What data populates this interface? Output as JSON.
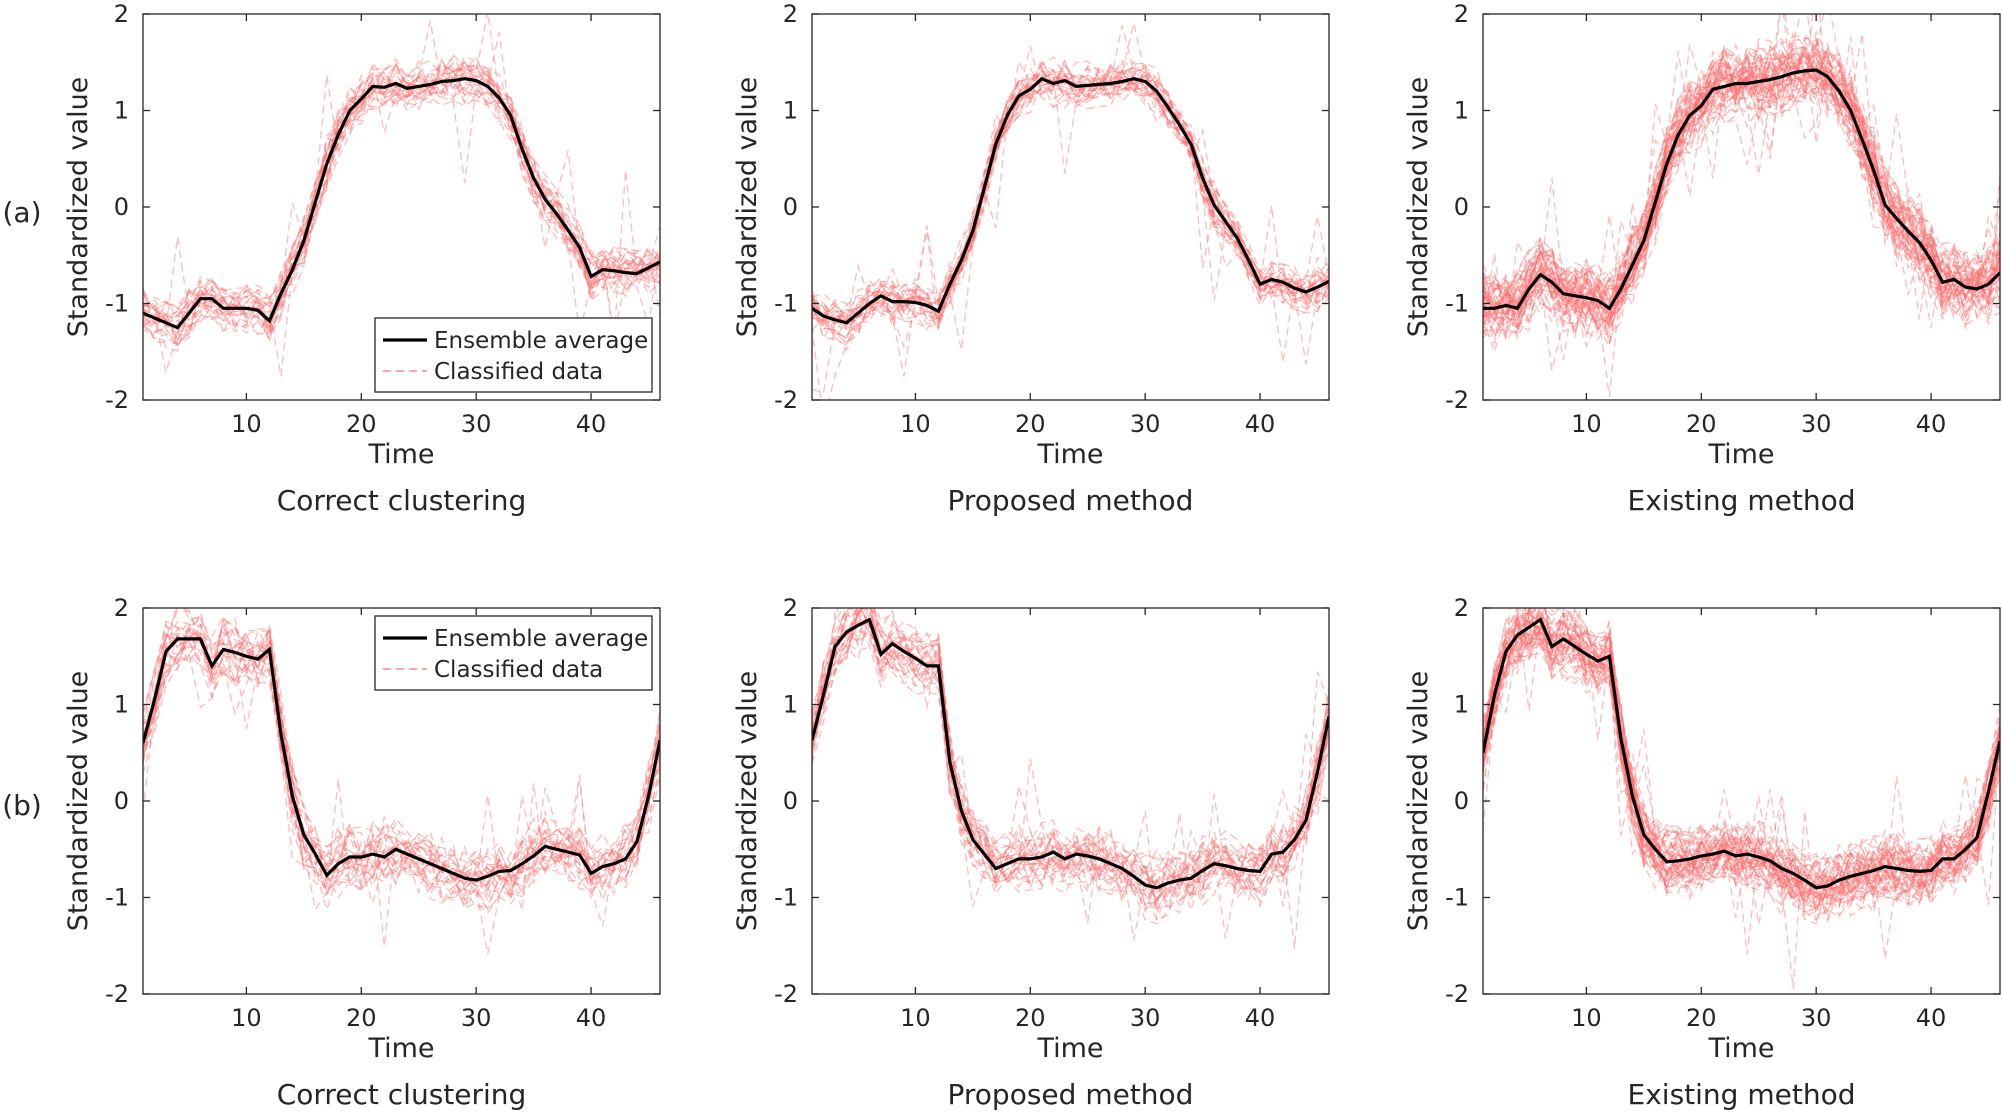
{
  "figure": {
    "row_labels": [
      "(a)",
      "(b)"
    ],
    "legend": {
      "average_label": "Ensemble average",
      "classified_label": "Classified data"
    }
  },
  "colors": {
    "average": "#000000",
    "classified": "#ff6b6b",
    "axis": "#262626",
    "text": "#262626"
  },
  "chart_data": [
    {
      "type": "line",
      "row": "(a)",
      "title": "Correct clustering",
      "xlabel": "Time",
      "ylabel": "Standardized value",
      "xlim": [
        1,
        46
      ],
      "ylim": [
        -2,
        2
      ],
      "xticks": [
        10,
        20,
        30,
        40
      ],
      "yticks": [
        -2,
        -1,
        0,
        1,
        2
      ],
      "legend": {
        "shown": true,
        "placement": "bottom-right"
      },
      "series": [
        {
          "name": "Ensemble average",
          "x": [
            1,
            2,
            3,
            4,
            5,
            6,
            7,
            8,
            9,
            10,
            11,
            12,
            13,
            14,
            15,
            16,
            17,
            18,
            19,
            20,
            21,
            22,
            23,
            24,
            25,
            26,
            27,
            28,
            29,
            30,
            31,
            32,
            33,
            34,
            35,
            36,
            37,
            38,
            39,
            40,
            41,
            42,
            43,
            44,
            45,
            46
          ],
          "values": [
            -1.1,
            -1.15,
            -1.2,
            -1.25,
            -1.1,
            -0.95,
            -0.95,
            -1.05,
            -1.05,
            -1.05,
            -1.07,
            -1.18,
            -0.9,
            -0.65,
            -0.35,
            0.05,
            0.45,
            0.75,
            1.0,
            1.12,
            1.25,
            1.24,
            1.28,
            1.23,
            1.25,
            1.27,
            1.3,
            1.31,
            1.33,
            1.31,
            1.25,
            1.13,
            0.95,
            0.6,
            0.3,
            0.08,
            -0.07,
            -0.24,
            -0.42,
            -0.72,
            -0.65,
            -0.66,
            -0.68,
            -0.69,
            -0.63,
            -0.57
          ]
        },
        {
          "name": "Classified data",
          "approx_count": 30,
          "spread": 0.22,
          "outliers": "moderate variation around the ensemble average"
        }
      ]
    },
    {
      "type": "line",
      "row": "(a)",
      "title": "Proposed method",
      "xlabel": "Time",
      "ylabel": "Standardized value",
      "xlim": [
        1,
        46
      ],
      "ylim": [
        -2,
        2
      ],
      "xticks": [
        10,
        20,
        30,
        40
      ],
      "yticks": [
        -2,
        -1,
        0,
        1,
        2
      ],
      "legend": {
        "shown": false
      },
      "series": [
        {
          "name": "Ensemble average",
          "x": [
            1,
            2,
            3,
            4,
            5,
            6,
            7,
            8,
            9,
            10,
            11,
            12,
            13,
            14,
            15,
            16,
            17,
            18,
            19,
            20,
            21,
            22,
            23,
            24,
            25,
            26,
            27,
            28,
            29,
            30,
            31,
            32,
            33,
            34,
            35,
            36,
            37,
            38,
            39,
            40,
            41,
            42,
            43,
            44,
            45,
            46
          ],
          "values": [
            -1.05,
            -1.13,
            -1.17,
            -1.2,
            -1.1,
            -1.0,
            -0.92,
            -0.98,
            -0.98,
            -0.99,
            -1.02,
            -1.08,
            -0.8,
            -0.55,
            -0.25,
            0.2,
            0.65,
            0.95,
            1.15,
            1.22,
            1.33,
            1.28,
            1.31,
            1.25,
            1.26,
            1.27,
            1.28,
            1.3,
            1.33,
            1.3,
            1.2,
            1.03,
            0.85,
            0.65,
            0.3,
            0.02,
            -0.15,
            -0.32,
            -0.55,
            -0.8,
            -0.75,
            -0.78,
            -0.84,
            -0.88,
            -0.83,
            -0.77
          ]
        },
        {
          "name": "Classified data",
          "approx_count": 32,
          "spread": 0.2,
          "outliers": "one curve drops near t=31"
        }
      ]
    },
    {
      "type": "line",
      "row": "(a)",
      "title": "Existing method",
      "xlabel": "Time",
      "ylabel": "Standardized value",
      "xlim": [
        1,
        46
      ],
      "ylim": [
        -2,
        2
      ],
      "xticks": [
        10,
        20,
        30,
        40
      ],
      "yticks": [
        -2,
        -1,
        0,
        1,
        2
      ],
      "legend": {
        "shown": false
      },
      "series": [
        {
          "name": "Ensemble average",
          "x": [
            1,
            2,
            3,
            4,
            5,
            6,
            7,
            8,
            9,
            10,
            11,
            12,
            13,
            14,
            15,
            16,
            17,
            18,
            19,
            20,
            21,
            22,
            23,
            24,
            25,
            26,
            27,
            28,
            29,
            30,
            31,
            32,
            33,
            34,
            35,
            36,
            37,
            38,
            39,
            40,
            41,
            42,
            43,
            44,
            45,
            46
          ],
          "values": [
            -1.05,
            -1.05,
            -1.02,
            -1.05,
            -0.85,
            -0.7,
            -0.78,
            -0.9,
            -0.92,
            -0.94,
            -0.97,
            -1.05,
            -0.85,
            -0.6,
            -0.35,
            0.05,
            0.45,
            0.75,
            0.95,
            1.05,
            1.22,
            1.25,
            1.28,
            1.28,
            1.3,
            1.32,
            1.35,
            1.39,
            1.41,
            1.42,
            1.35,
            1.2,
            1.0,
            0.7,
            0.38,
            0.02,
            -0.12,
            -0.25,
            -0.37,
            -0.55,
            -0.78,
            -0.75,
            -0.83,
            -0.85,
            -0.8,
            -0.68
          ]
        },
        {
          "name": "Classified data",
          "approx_count": 60,
          "spread": 0.35,
          "outliers": "many spikes near t=5 and steep drops near t=32"
        }
      ]
    },
    {
      "type": "line",
      "row": "(b)",
      "title": "Correct clustering",
      "xlabel": "Time",
      "ylabel": "Standardized value",
      "xlim": [
        1,
        46
      ],
      "ylim": [
        -2,
        2
      ],
      "xticks": [
        10,
        20,
        30,
        40
      ],
      "yticks": [
        -2,
        -1,
        0,
        1,
        2
      ],
      "legend": {
        "shown": true,
        "placement": "top-right"
      },
      "series": [
        {
          "name": "Ensemble average",
          "x": [
            1,
            2,
            3,
            4,
            5,
            6,
            7,
            8,
            9,
            10,
            11,
            12,
            13,
            14,
            15,
            16,
            17,
            18,
            19,
            20,
            21,
            22,
            23,
            24,
            25,
            26,
            27,
            28,
            29,
            30,
            31,
            32,
            33,
            34,
            35,
            36,
            37,
            38,
            39,
            40,
            41,
            42,
            43,
            44,
            45,
            46
          ],
          "values": [
            0.6,
            1.05,
            1.55,
            1.68,
            1.68,
            1.68,
            1.4,
            1.57,
            1.54,
            1.5,
            1.47,
            1.57,
            0.7,
            0.05,
            -0.35,
            -0.55,
            -0.77,
            -0.65,
            -0.58,
            -0.58,
            -0.55,
            -0.58,
            -0.5,
            -0.55,
            -0.6,
            -0.65,
            -0.7,
            -0.75,
            -0.8,
            -0.82,
            -0.78,
            -0.73,
            -0.72,
            -0.65,
            -0.57,
            -0.47,
            -0.5,
            -0.53,
            -0.56,
            -0.75,
            -0.68,
            -0.65,
            -0.6,
            -0.42,
            0.05,
            0.63
          ]
        },
        {
          "name": "Classified data",
          "approx_count": 28,
          "spread": 0.3,
          "outliers": "several curves jump high between t=20 and t=46"
        }
      ]
    },
    {
      "type": "line",
      "row": "(b)",
      "title": "Proposed method",
      "xlabel": "Time",
      "ylabel": "Standardized value",
      "xlim": [
        1,
        46
      ],
      "ylim": [
        -2,
        2
      ],
      "xticks": [
        10,
        20,
        30,
        40
      ],
      "yticks": [
        -2,
        -1,
        0,
        1,
        2
      ],
      "legend": {
        "shown": false
      },
      "series": [
        {
          "name": "Ensemble average",
          "x": [
            1,
            2,
            3,
            4,
            5,
            6,
            7,
            8,
            9,
            10,
            11,
            12,
            13,
            14,
            15,
            16,
            17,
            18,
            19,
            20,
            21,
            22,
            23,
            24,
            25,
            26,
            27,
            28,
            29,
            30,
            31,
            32,
            33,
            34,
            35,
            36,
            37,
            38,
            39,
            40,
            41,
            42,
            43,
            44,
            45,
            46
          ],
          "values": [
            0.63,
            1.1,
            1.6,
            1.75,
            1.82,
            1.88,
            1.52,
            1.63,
            1.55,
            1.48,
            1.4,
            1.4,
            0.4,
            -0.1,
            -0.4,
            -0.55,
            -0.7,
            -0.65,
            -0.6,
            -0.6,
            -0.58,
            -0.53,
            -0.6,
            -0.55,
            -0.57,
            -0.6,
            -0.65,
            -0.7,
            -0.78,
            -0.87,
            -0.9,
            -0.85,
            -0.82,
            -0.8,
            -0.72,
            -0.65,
            -0.67,
            -0.7,
            -0.72,
            -0.73,
            -0.55,
            -0.53,
            -0.4,
            -0.2,
            0.3,
            0.88
          ]
        },
        {
          "name": "Classified data",
          "approx_count": 32,
          "spread": 0.3,
          "outliers": "some noisy spikes between t=20 and t=46"
        }
      ]
    },
    {
      "type": "line",
      "row": "(b)",
      "title": "Existing method",
      "xlabel": "Time",
      "ylabel": "Standardized value",
      "xlim": [
        1,
        46
      ],
      "ylim": [
        -2,
        2
      ],
      "xticks": [
        10,
        20,
        30,
        40
      ],
      "yticks": [
        -2,
        -1,
        0,
        1,
        2
      ],
      "legend": {
        "shown": false
      },
      "series": [
        {
          "name": "Ensemble average",
          "x": [
            1,
            2,
            3,
            4,
            5,
            6,
            7,
            8,
            9,
            10,
            11,
            12,
            13,
            14,
            15,
            16,
            17,
            18,
            19,
            20,
            21,
            22,
            23,
            24,
            25,
            26,
            27,
            28,
            29,
            30,
            31,
            32,
            33,
            34,
            35,
            36,
            37,
            38,
            39,
            40,
            41,
            42,
            43,
            44,
            45,
            46
          ],
          "values": [
            0.5,
            1.1,
            1.55,
            1.72,
            1.8,
            1.88,
            1.6,
            1.68,
            1.6,
            1.52,
            1.45,
            1.5,
            0.65,
            0.05,
            -0.35,
            -0.5,
            -0.63,
            -0.62,
            -0.6,
            -0.57,
            -0.55,
            -0.52,
            -0.57,
            -0.55,
            -0.58,
            -0.62,
            -0.7,
            -0.75,
            -0.82,
            -0.9,
            -0.88,
            -0.82,
            -0.78,
            -0.75,
            -0.72,
            -0.68,
            -0.7,
            -0.72,
            -0.73,
            -0.72,
            -0.6,
            -0.6,
            -0.5,
            -0.38,
            0.1,
            0.62
          ]
        },
        {
          "name": "Classified data",
          "approx_count": 55,
          "spread": 0.32,
          "outliers": "dense noisy spikes between t=30 and t=46"
        }
      ]
    }
  ]
}
